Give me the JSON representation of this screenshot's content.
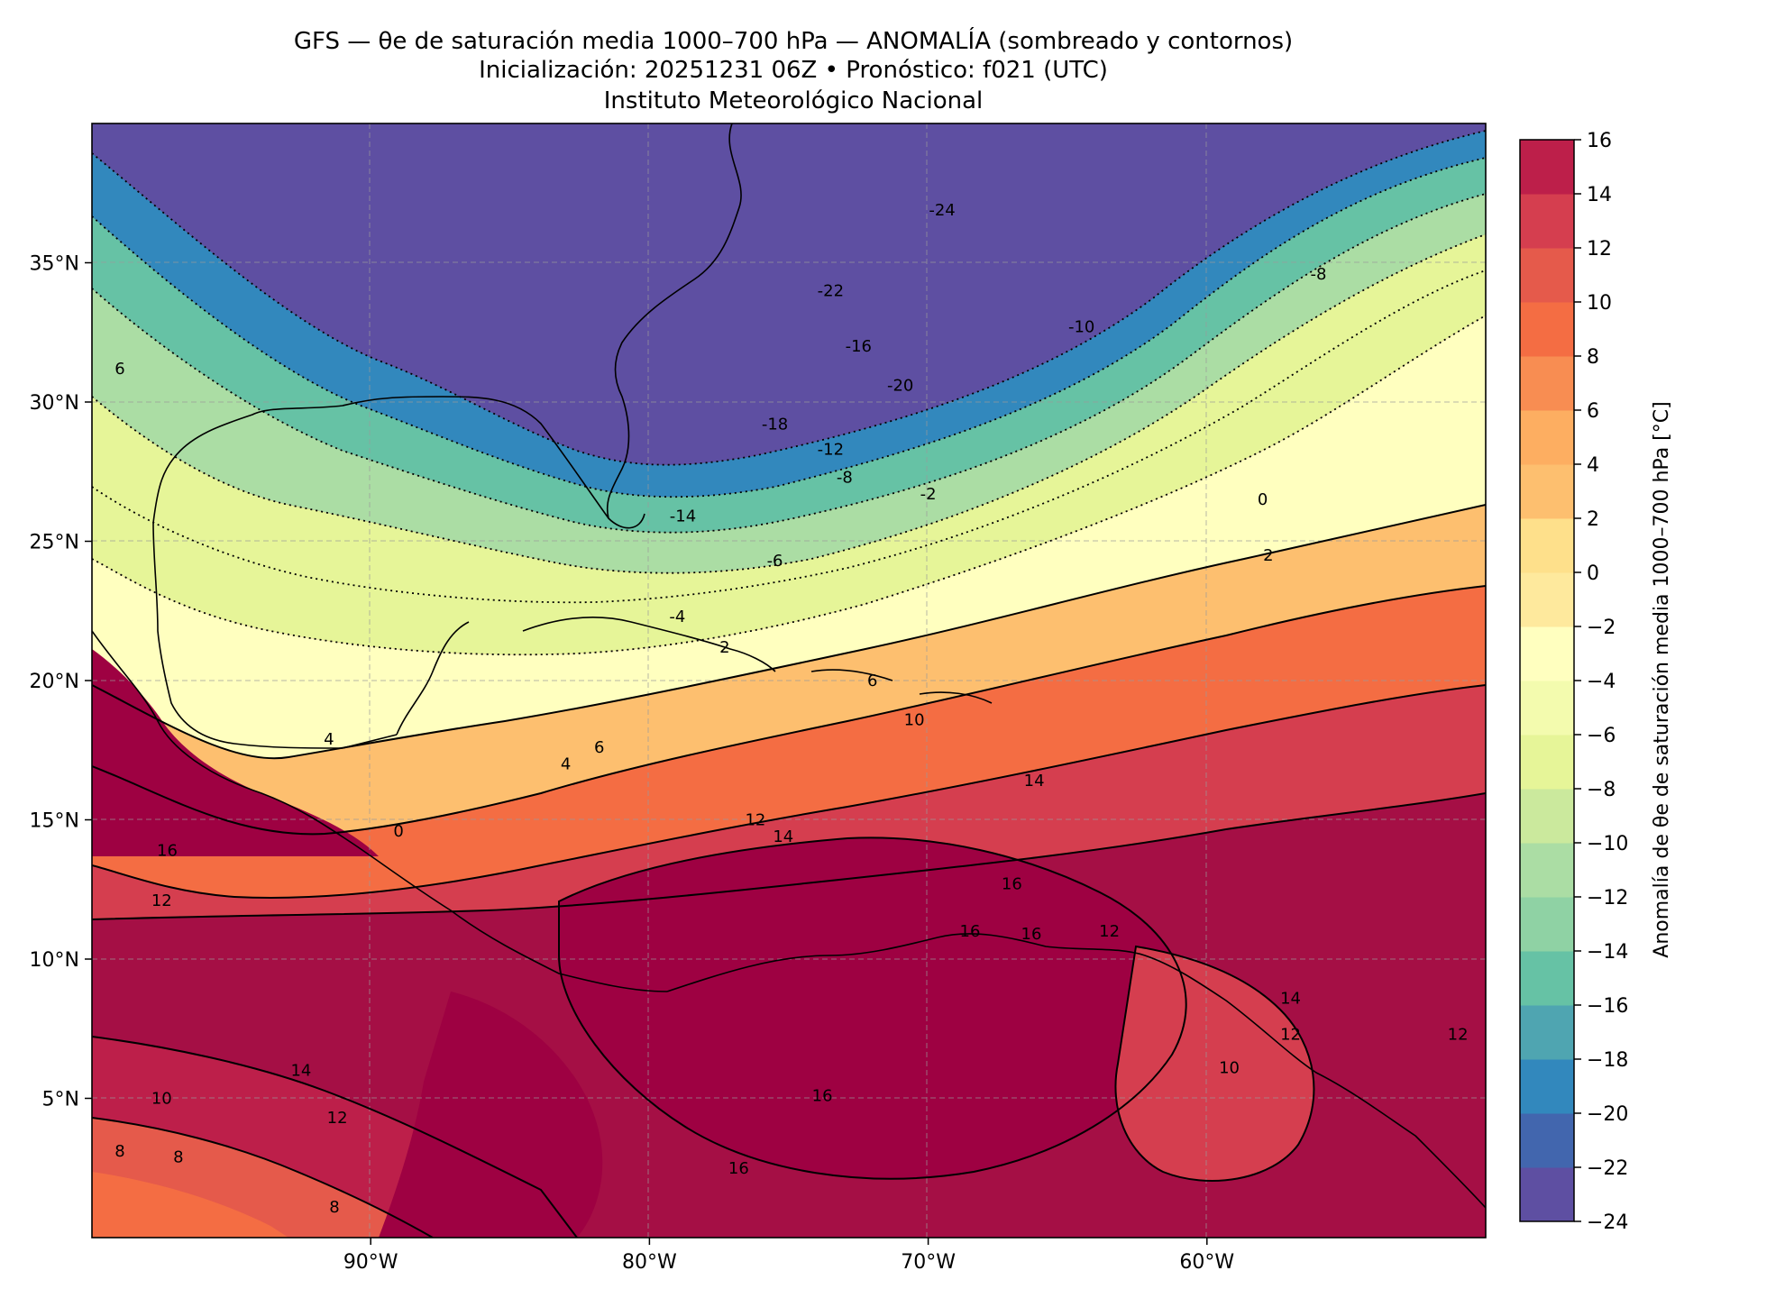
{
  "title": {
    "line1": "GFS — θe de saturación media 1000–700 hPa — ANOMALÍA (sombreado y contornos)",
    "line2": "Inicialización: 20251231 06Z   •   Pronóstico: f021 (UTC)",
    "line3": "Instituto Meteorológico Nacional"
  },
  "map": {
    "lon_range": [
      -100,
      -50
    ],
    "lat_range": [
      0,
      40
    ],
    "x_ticks": [
      {
        "lon": -90,
        "label": "90°W"
      },
      {
        "lon": -80,
        "label": "80°W"
      },
      {
        "lon": -70,
        "label": "70°W"
      },
      {
        "lon": -60,
        "label": "60°W"
      }
    ],
    "y_ticks": [
      {
        "lat": 35,
        "label": "35°N"
      },
      {
        "lat": 30,
        "label": "30°N"
      },
      {
        "lat": 25,
        "label": "25°N"
      },
      {
        "lat": 20,
        "label": "20°N"
      },
      {
        "lat": 15,
        "label": "15°N"
      },
      {
        "lat": 10,
        "label": "10°N"
      },
      {
        "lat": 5,
        "label": "5°N"
      }
    ],
    "gridlines": true,
    "contour_labels": [
      {
        "lon": -69.5,
        "lat": 36.9,
        "text": "-24"
      },
      {
        "lon": -73.5,
        "lat": 34.0,
        "text": "-22"
      },
      {
        "lon": -72.5,
        "lat": 32.0,
        "text": "-16"
      },
      {
        "lon": -71.0,
        "lat": 30.6,
        "text": "-20"
      },
      {
        "lon": -75.5,
        "lat": 29.2,
        "text": "-18"
      },
      {
        "lon": -73.5,
        "lat": 28.3,
        "text": "-12"
      },
      {
        "lon": -73.0,
        "lat": 27.3,
        "text": "-8"
      },
      {
        "lon": -70.0,
        "lat": 26.7,
        "text": "-2"
      },
      {
        "lon": -78.8,
        "lat": 25.9,
        "text": "-14"
      },
      {
        "lon": -75.5,
        "lat": 24.3,
        "text": "-6"
      },
      {
        "lon": -79.0,
        "lat": 22.3,
        "text": "-4"
      },
      {
        "lon": -64.5,
        "lat": 32.7,
        "text": "-10"
      },
      {
        "lon": -56.0,
        "lat": 34.6,
        "text": "-8"
      },
      {
        "lon": -58.0,
        "lat": 26.5,
        "text": "0"
      },
      {
        "lon": -57.8,
        "lat": 24.5,
        "text": "2"
      },
      {
        "lon": -99.0,
        "lat": 31.2,
        "text": "6"
      },
      {
        "lon": -91.5,
        "lat": 17.9,
        "text": "4"
      },
      {
        "lon": -83.0,
        "lat": 17.0,
        "text": "4"
      },
      {
        "lon": -81.8,
        "lat": 17.6,
        "text": "6"
      },
      {
        "lon": -77.3,
        "lat": 21.2,
        "text": "2"
      },
      {
        "lon": -72.0,
        "lat": 20.0,
        "text": "6"
      },
      {
        "lon": -70.5,
        "lat": 18.6,
        "text": "10"
      },
      {
        "lon": -89.0,
        "lat": 14.6,
        "text": "0"
      },
      {
        "lon": -76.2,
        "lat": 15.0,
        "text": "12"
      },
      {
        "lon": -75.2,
        "lat": 14.4,
        "text": "14"
      },
      {
        "lon": -66.2,
        "lat": 16.4,
        "text": "14"
      },
      {
        "lon": -67.0,
        "lat": 12.7,
        "text": "16"
      },
      {
        "lon": -68.5,
        "lat": 11.0,
        "text": "16"
      },
      {
        "lon": -66.3,
        "lat": 10.9,
        "text": "16"
      },
      {
        "lon": -63.5,
        "lat": 11.0,
        "text": "12"
      },
      {
        "lon": -97.3,
        "lat": 13.9,
        "text": "16"
      },
      {
        "lon": -97.5,
        "lat": 12.1,
        "text": "12"
      },
      {
        "lon": -57.0,
        "lat": 8.6,
        "text": "14"
      },
      {
        "lon": -59.2,
        "lat": 6.1,
        "text": "10"
      },
      {
        "lon": -57.0,
        "lat": 7.3,
        "text": "12"
      },
      {
        "lon": -51.0,
        "lat": 7.3,
        "text": "12"
      },
      {
        "lon": -92.5,
        "lat": 6.0,
        "text": "14"
      },
      {
        "lon": -97.5,
        "lat": 5.0,
        "text": "10"
      },
      {
        "lon": -91.2,
        "lat": 4.3,
        "text": "12"
      },
      {
        "lon": -73.8,
        "lat": 5.1,
        "text": "16"
      },
      {
        "lon": -99.0,
        "lat": 3.1,
        "text": "8"
      },
      {
        "lon": -96.9,
        "lat": 2.9,
        "text": "8"
      },
      {
        "lon": -91.3,
        "lat": 1.1,
        "text": "8"
      },
      {
        "lon": -76.8,
        "lat": 2.5,
        "text": "16"
      }
    ]
  },
  "colorbar": {
    "label": "Anomalía de θe de saturación media 1000–700 hPa [°C]",
    "levels": [
      -24,
      -22,
      -20,
      -18,
      -16,
      -14,
      -12,
      -10,
      -8,
      -6,
      -4,
      -2,
      0,
      2,
      4,
      6,
      8,
      10,
      12,
      14,
      16
    ],
    "colors": [
      "#5e4fa2",
      "#4266ae",
      "#3288bd",
      "#4fa5b1",
      "#66c2a5",
      "#8fd2a4",
      "#abdda4",
      "#cbe99d",
      "#e6f598",
      "#f3fbae",
      "#ffffbf",
      "#fee99d",
      "#fee08b",
      "#fdbf6f",
      "#fdae61",
      "#f88d52",
      "#f46d43",
      "#e55a4b",
      "#d53e4f",
      "#bd1f4a",
      "#9e0142"
    ],
    "tick_labels": [
      "−24",
      "−22",
      "−20",
      "−18",
      "−16",
      "−14",
      "−12",
      "−10",
      "−8",
      "−6",
      "−4",
      "−2",
      "0",
      "2",
      "4",
      "6",
      "8",
      "10",
      "12",
      "14",
      "16"
    ]
  }
}
